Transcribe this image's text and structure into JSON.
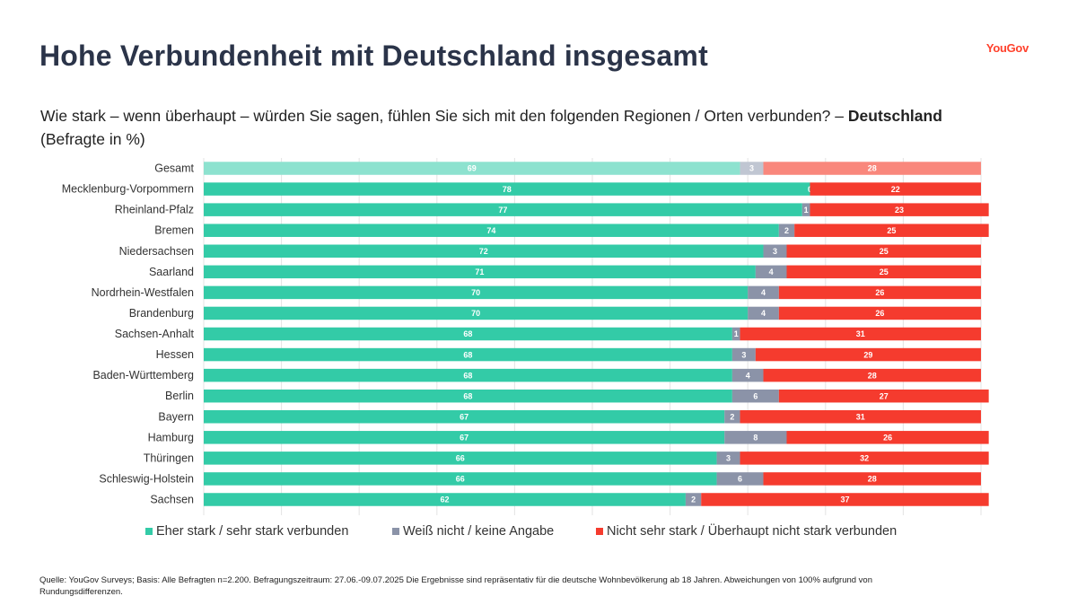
{
  "header": {
    "title": "Hohe Verbundenheit mit Deutschland insgesamt",
    "logo": "YouGov",
    "question": "Wie stark – wenn überhaupt – würden Sie sagen, fühlen Sie sich mit den folgenden Regionen / Orten verbunden? –",
    "question_bold": "Deutschland",
    "unit_note": "(Befragte in %)"
  },
  "chart_data": {
    "type": "bar",
    "orientation": "horizontal",
    "stacked": true,
    "xlim": [
      0,
      100
    ],
    "grid": true,
    "legend_position": "bottom",
    "categories": [
      "Gesamt",
      "Mecklenburg-Vorpommern",
      "Rheinland-Pfalz",
      "Bremen",
      "Niedersachsen",
      "Saarland",
      "Nordrhein-Westfalen",
      "Brandenburg",
      "Sachsen-Anhalt",
      "Hessen",
      "Baden-Württemberg",
      "Berlin",
      "Bayern",
      "Hamburg",
      "Thüringen",
      "Schleswig-Holstein",
      "Sachsen"
    ],
    "series": [
      {
        "name": "Eher stark / sehr stark verbunden",
        "color": "#33cba7",
        "highlight_color": "#8de2cf",
        "values": [
          69,
          78,
          77,
          74,
          72,
          71,
          70,
          70,
          68,
          68,
          68,
          68,
          67,
          67,
          66,
          66,
          62
        ]
      },
      {
        "name": "Weiß nicht / keine Angabe",
        "color": "#8b93a8",
        "highlight_color": "#c0c6d2",
        "values": [
          3,
          0,
          1,
          2,
          3,
          4,
          4,
          4,
          1,
          3,
          4,
          6,
          2,
          8,
          3,
          6,
          2
        ]
      },
      {
        "name": "Nicht sehr stark / Überhaupt nicht stark verbunden",
        "color": "#f53b2e",
        "highlight_color": "#f9877c",
        "values": [
          28,
          22,
          23,
          25,
          25,
          25,
          26,
          26,
          31,
          29,
          28,
          27,
          31,
          26,
          32,
          28,
          37
        ]
      }
    ],
    "highlight_category": "Gesamt"
  },
  "footer": {
    "source": "Quelle: YouGov Surveys; Basis: Alle Befragten n=2.200. Befragungszeitraum: 27.06.-09.07.2025 Die Ergebnisse sind repräsentativ für die deutsche Wohnbevölkerung ab 18 Jahren. Abweichungen von 100% aufgrund von Rundungsdifferenzen."
  }
}
